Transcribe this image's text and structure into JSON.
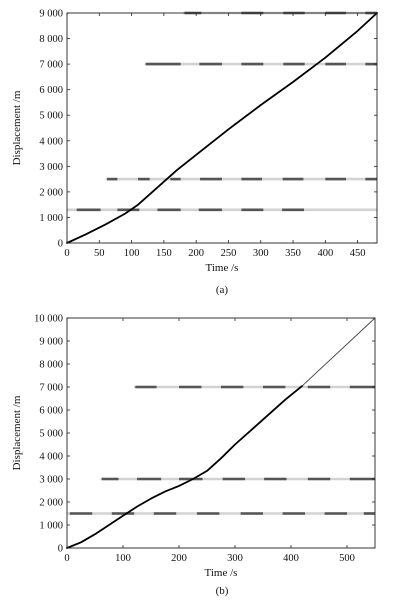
{
  "chart_data": [
    {
      "type": "line",
      "panel_label": "(a)",
      "xlabel": "Time /s",
      "ylabel": "Displacement /m",
      "xlim": [
        0,
        480
      ],
      "ylim": [
        0,
        9000
      ],
      "xticks": [
        0,
        50,
        100,
        150,
        200,
        250,
        300,
        350,
        400,
        450
      ],
      "yticks": [
        0,
        1000,
        2000,
        3000,
        4000,
        5000,
        6000,
        7000,
        8000,
        9000
      ],
      "ytick_labels": [
        "0",
        "1 000",
        "2 000",
        "3 000",
        "4 000",
        "5 000",
        "6 000",
        "7 000",
        "8 000",
        "9 000"
      ],
      "grid": false,
      "series": [
        {
          "style": "solid-thick",
          "color": "#000000",
          "x": [
            0,
            30,
            60,
            90,
            110,
            130,
            150,
            170,
            200,
            250,
            300,
            350,
            400,
            450,
            480
          ],
          "y": [
            0,
            350,
            730,
            1150,
            1500,
            1950,
            2400,
            2850,
            3450,
            4450,
            5400,
            6300,
            7250,
            8300,
            9000
          ]
        }
      ],
      "reference_lines": [
        {
          "y": 1300,
          "x_from": 0,
          "x_to": 480,
          "dashes": [
            [
              15,
              52
            ],
            [
              78,
              112
            ],
            [
              140,
              176
            ],
            [
              204,
              240
            ],
            [
              270,
              304
            ],
            [
              333,
              367
            ]
          ]
        },
        {
          "y": 2500,
          "x_from": 60,
          "x_to": 480,
          "dashes": [
            [
              62,
              78
            ],
            [
              110,
              128
            ],
            [
              160,
              176
            ],
            [
              206,
              240
            ],
            [
              270,
              302
            ],
            [
              334,
              366
            ],
            [
              400,
              432
            ],
            [
              462,
              480
            ]
          ]
        },
        {
          "y": 7000,
          "x_from": 120,
          "x_to": 480,
          "dashes": [
            [
              122,
              176
            ],
            [
              205,
              240
            ],
            [
              270,
              304
            ],
            [
              335,
              368
            ],
            [
              400,
              432
            ],
            [
              462,
              480
            ]
          ]
        },
        {
          "y": 9000,
          "x_from": 180,
          "x_to": 480,
          "dashes": [
            [
              182,
              208
            ],
            [
              270,
              304
            ],
            [
              335,
              368
            ],
            [
              400,
              432
            ],
            [
              462,
              480
            ]
          ]
        }
      ]
    },
    {
      "type": "line",
      "panel_label": "(b)",
      "xlabel": "Time /s",
      "ylabel": "Displacement /m",
      "xlim": [
        0,
        550
      ],
      "ylim": [
        0,
        10000
      ],
      "xticks": [
        0,
        100,
        200,
        300,
        400,
        500
      ],
      "yticks": [
        0,
        1000,
        2000,
        3000,
        4000,
        5000,
        6000,
        7000,
        8000,
        9000,
        10000
      ],
      "ytick_labels": [
        "0",
        "1 000",
        "2 000",
        "3 000",
        "4 000",
        "5 000",
        "6 000",
        "7 000",
        "8 000",
        "9 000",
        "10 000"
      ],
      "grid": false,
      "series": [
        {
          "style": "solid-thick",
          "color": "#000000",
          "x": [
            0,
            25,
            50,
            75,
            100,
            125,
            150,
            175,
            200,
            225,
            250,
            275,
            300,
            330,
            360,
            390,
            420
          ],
          "y": [
            0,
            250,
            600,
            1000,
            1400,
            1800,
            2150,
            2450,
            2700,
            3000,
            3350,
            3900,
            4500,
            5150,
            5800,
            6450,
            7050
          ]
        },
        {
          "style": "solid-thin",
          "color": "#444444",
          "x": [
            420,
            550
          ],
          "y": [
            7050,
            10000
          ]
        }
      ],
      "reference_lines": [
        {
          "y": 1500,
          "x_from": 0,
          "x_to": 550,
          "dashes": [
            [
              5,
              45
            ],
            [
              80,
              120
            ],
            [
              155,
              195
            ],
            [
              232,
              272
            ],
            [
              310,
              350
            ],
            [
              385,
              425
            ],
            [
              460,
              500
            ],
            [
              530,
              550
            ]
          ]
        },
        {
          "y": 3000,
          "x_from": 60,
          "x_to": 550,
          "dashes": [
            [
              62,
              92
            ],
            [
              125,
              168
            ],
            [
              200,
              242
            ],
            [
              278,
              318
            ],
            [
              352,
              392
            ],
            [
              430,
              470
            ],
            [
              505,
              550
            ]
          ]
        },
        {
          "y": 7000,
          "x_from": 120,
          "x_to": 550,
          "dashes": [
            [
              122,
              160
            ],
            [
              200,
              240
            ],
            [
              275,
              315
            ],
            [
              350,
              390
            ],
            [
              430,
              470
            ],
            [
              505,
              550
            ]
          ]
        }
      ]
    }
  ]
}
